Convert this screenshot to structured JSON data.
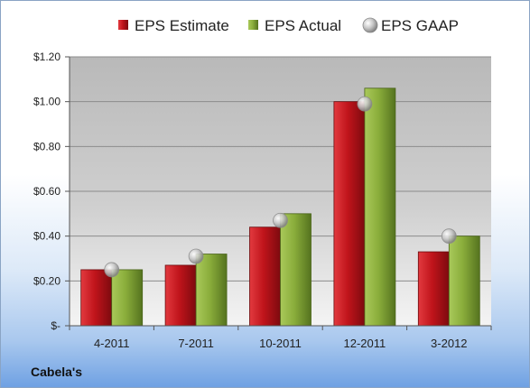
{
  "company": "Cabela's",
  "chart_data": {
    "type": "bar",
    "categories": [
      "4-2011",
      "7-2011",
      "10-2011",
      "12-2011",
      "3-2012"
    ],
    "series": [
      {
        "name": "EPS Estimate",
        "values": [
          0.25,
          0.27,
          0.44,
          1.0,
          0.33
        ],
        "color": "#c0141b"
      },
      {
        "name": "EPS Actual",
        "values": [
          0.25,
          0.32,
          0.5,
          1.06,
          0.4
        ],
        "color": "#8aad3b"
      }
    ],
    "markers": {
      "name": "EPS GAAP",
      "values": [
        0.25,
        0.31,
        0.47,
        0.99,
        0.4
      ],
      "color": "#b8b8b8"
    },
    "ylim": [
      0,
      1.2
    ],
    "yticks": [
      0,
      0.2,
      0.4,
      0.6,
      0.8,
      1.0,
      1.2
    ],
    "ytick_labels": [
      "$-",
      "$0.20",
      "$0.40",
      "$0.60",
      "$0.80",
      "$1.00",
      "$1.20"
    ],
    "legend_position": "top",
    "grid": true
  }
}
